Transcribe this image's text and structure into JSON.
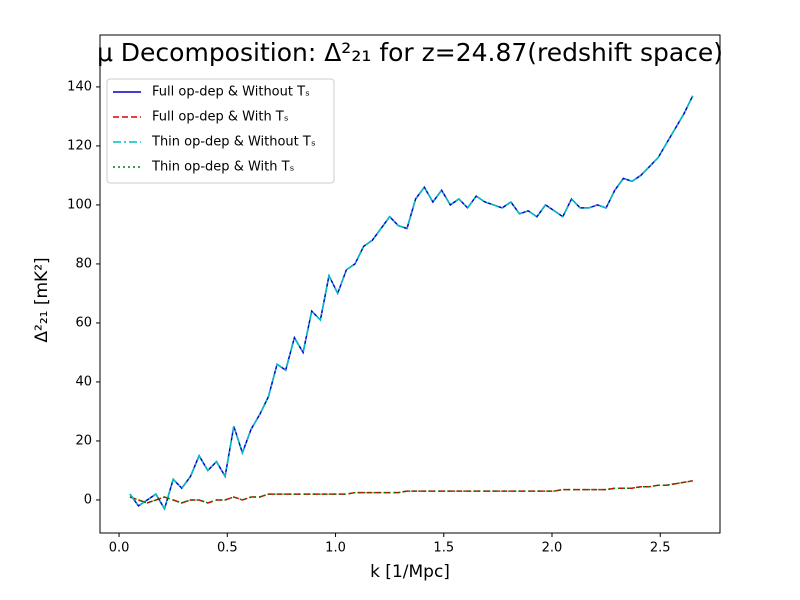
{
  "chart_data": {
    "type": "line",
    "title": "μ Decomposition: Δ²₂₁ for z=24.87(redshift space)",
    "xlabel": "k [1/Mpc]",
    "ylabel": "Δ²₂₁ [mK²]",
    "x": [
      0.05,
      0.09,
      0.13,
      0.17,
      0.21,
      0.25,
      0.29,
      0.33,
      0.37,
      0.41,
      0.45,
      0.49,
      0.53,
      0.57,
      0.61,
      0.65,
      0.69,
      0.73,
      0.77,
      0.81,
      0.85,
      0.89,
      0.93,
      0.97,
      1.01,
      1.05,
      1.09,
      1.13,
      1.17,
      1.21,
      1.25,
      1.29,
      1.33,
      1.37,
      1.41,
      1.45,
      1.49,
      1.53,
      1.57,
      1.61,
      1.65,
      1.69,
      1.73,
      1.77,
      1.81,
      1.85,
      1.89,
      1.93,
      1.97,
      2.01,
      2.05,
      2.09,
      2.13,
      2.17,
      2.21,
      2.25,
      2.29,
      2.33,
      2.37,
      2.41,
      2.45,
      2.49,
      2.53,
      2.57,
      2.61,
      2.65
    ],
    "series": [
      {
        "name": "Full op-dep & Without Tₛ",
        "color": "#0000cc",
        "style": "solid",
        "values": [
          2,
          -2,
          0,
          2,
          -3,
          7,
          4,
          8,
          15,
          10,
          13,
          8,
          25,
          16,
          24,
          29,
          35,
          46,
          44,
          55,
          50,
          64,
          61,
          76,
          70,
          78,
          80,
          86,
          88,
          92,
          96,
          93,
          92,
          102,
          106,
          101,
          105,
          100,
          102,
          99,
          103,
          101,
          100,
          99,
          101,
          97,
          98,
          96,
          100,
          98,
          96,
          102,
          99,
          99,
          100,
          99,
          105,
          109,
          108,
          110,
          113,
          116,
          121,
          126,
          131,
          137
        ]
      },
      {
        "name": "Full op-dep & With Tₛ",
        "color": "#dd0000",
        "style": "dashed",
        "values": [
          1,
          0,
          -1,
          0,
          1,
          0,
          -1,
          0,
          0,
          -1,
          0,
          0,
          1,
          0,
          1,
          1,
          2,
          2,
          2,
          2,
          2,
          2,
          2,
          2,
          2,
          2,
          2.5,
          2.5,
          2.5,
          2.5,
          2.5,
          2.5,
          3,
          3,
          3,
          3,
          3,
          3,
          3,
          3,
          3,
          3,
          3,
          3,
          3,
          3,
          3,
          3,
          3,
          3,
          3.5,
          3.5,
          3.5,
          3.5,
          3.5,
          3.5,
          4,
          4,
          4,
          4.5,
          4.5,
          5,
          5,
          5.5,
          6,
          6.5
        ]
      },
      {
        "name": "Thin op-dep & Without Tₛ",
        "color": "#00bfbf",
        "style": "dashdot",
        "values": [
          2,
          -2,
          0,
          2,
          -3,
          7,
          4,
          8,
          15,
          10,
          13,
          8,
          25,
          16,
          24,
          29,
          35,
          46,
          44,
          55,
          50,
          64,
          61,
          76,
          70,
          78,
          80,
          86,
          88,
          92,
          96,
          93,
          92,
          102,
          106,
          101,
          105,
          100,
          102,
          99,
          103,
          101,
          100,
          99,
          101,
          97,
          98,
          96,
          100,
          98,
          96,
          102,
          99,
          99,
          100,
          99,
          105,
          109,
          108,
          110,
          113,
          116,
          121,
          126,
          131,
          137
        ]
      },
      {
        "name": "Thin op-dep & With Tₛ",
        "color": "#008000",
        "style": "dotted",
        "values": [
          1,
          0,
          -1,
          0,
          1,
          0,
          -1,
          0,
          0,
          -1,
          0,
          0,
          1,
          0,
          1,
          1,
          2,
          2,
          2,
          2,
          2,
          2,
          2,
          2,
          2,
          2,
          2.5,
          2.5,
          2.5,
          2.5,
          2.5,
          2.5,
          3,
          3,
          3,
          3,
          3,
          3,
          3,
          3,
          3,
          3,
          3,
          3,
          3,
          3,
          3,
          3,
          3,
          3,
          3.5,
          3.5,
          3.5,
          3.5,
          3.5,
          3.5,
          4,
          4,
          4,
          4.5,
          4.5,
          5,
          5,
          5.5,
          6,
          6.5
        ]
      }
    ],
    "xlim": [
      -0.088,
      2.776
    ],
    "ylim": [
      -11.2,
      157.6
    ],
    "xticks": [
      {
        "value": 0,
        "label": "0.0"
      },
      0.5,
      {
        "value": 1,
        "label": "1.0"
      },
      1.5,
      {
        "value": 2,
        "label": "2.0"
      },
      2.5
    ],
    "yticks": [
      0,
      20,
      40,
      60,
      80,
      100,
      120,
      140
    ],
    "legend": "upper left"
  }
}
